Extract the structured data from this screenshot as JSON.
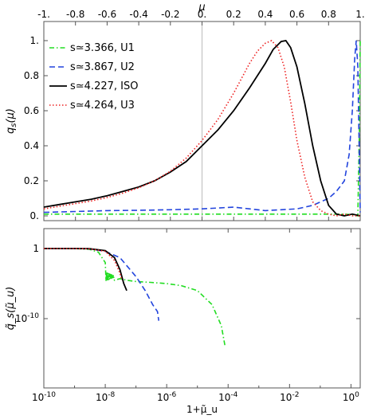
{
  "chart_data": [
    {
      "type": "line",
      "xlabel": "μ",
      "ylabel": "q_s(μ)",
      "xlim": [
        -1.0,
        1.0
      ],
      "ylim": [
        0.0,
        1.05
      ],
      "x_ticks": [
        -1.0,
        -0.8,
        -0.6,
        -0.4,
        -0.2,
        0.0,
        0.2,
        0.4,
        0.6,
        0.8,
        1.0
      ],
      "x_tick_labels": [
        "-1.",
        "-0.8",
        "-0.6",
        "-0.4",
        "-0.2",
        "0.",
        "0.2",
        "0.4",
        "0.6",
        "0.8",
        "1."
      ],
      "y_ticks": [
        0.0,
        0.2,
        0.4,
        0.6,
        0.8,
        1.0
      ],
      "y_tick_labels": [
        "0.",
        "0.2",
        "0.4",
        "0.6",
        "0.8",
        "1."
      ],
      "legend_position": "top-left",
      "series": [
        {
          "name": "s≃3.366, U1",
          "color": "#22dd22",
          "style": "dash-dot",
          "x": [
            -1.0,
            -0.5,
            0.0,
            0.5,
            0.9,
            0.97,
            0.985,
            0.995,
            1.0
          ],
          "y": [
            0.01,
            0.01,
            0.01,
            0.01,
            0.01,
            0.005,
            0.0,
            0.5,
            1.0
          ]
        },
        {
          "name": "s≃3.867, U2",
          "color": "#2244dd",
          "style": "dashed",
          "x": [
            -1.0,
            -0.8,
            -0.6,
            -0.4,
            -0.2,
            0.0,
            0.1,
            0.2,
            0.3,
            0.4,
            0.5,
            0.6,
            0.7,
            0.8,
            0.85,
            0.9,
            0.93,
            0.95,
            0.965,
            0.975,
            0.985,
            0.995,
            1.0
          ],
          "y": [
            0.02,
            0.025,
            0.03,
            0.032,
            0.035,
            0.04,
            0.045,
            0.05,
            0.04,
            0.03,
            0.035,
            0.04,
            0.06,
            0.1,
            0.14,
            0.2,
            0.35,
            0.6,
            0.9,
            1.0,
            0.85,
            0.3,
            0.02
          ]
        },
        {
          "name": "s≃4.227, ISO",
          "color": "#000000",
          "style": "solid",
          "x": [
            -1.0,
            -0.9,
            -0.8,
            -0.7,
            -0.6,
            -0.5,
            -0.4,
            -0.3,
            -0.2,
            -0.1,
            0.0,
            0.1,
            0.2,
            0.3,
            0.4,
            0.45,
            0.5,
            0.53,
            0.56,
            0.6,
            0.65,
            0.7,
            0.75,
            0.8,
            0.85,
            0.9,
            0.95,
            1.0
          ],
          "y": [
            0.05,
            0.065,
            0.08,
            0.095,
            0.115,
            0.14,
            0.165,
            0.2,
            0.25,
            0.31,
            0.4,
            0.49,
            0.6,
            0.73,
            0.87,
            0.95,
            0.995,
            1.0,
            0.96,
            0.85,
            0.64,
            0.4,
            0.2,
            0.06,
            0.01,
            0.0,
            0.01,
            0.0
          ]
        },
        {
          "name": "s≃4.264, U3",
          "color": "#ee2222",
          "style": "dotted",
          "x": [
            -1.0,
            -0.9,
            -0.8,
            -0.7,
            -0.6,
            -0.5,
            -0.4,
            -0.3,
            -0.2,
            -0.1,
            0.0,
            0.1,
            0.2,
            0.3,
            0.35,
            0.4,
            0.44,
            0.48,
            0.52,
            0.56,
            0.6,
            0.65,
            0.7,
            0.75,
            0.8,
            0.85,
            0.9,
            0.95,
            1.0
          ],
          "y": [
            0.04,
            0.055,
            0.07,
            0.085,
            0.105,
            0.13,
            0.16,
            0.2,
            0.255,
            0.33,
            0.43,
            0.55,
            0.7,
            0.87,
            0.94,
            0.985,
            1.0,
            0.96,
            0.85,
            0.65,
            0.43,
            0.22,
            0.08,
            0.03,
            0.01,
            0.0,
            0.01,
            0.0,
            0.0
          ]
        }
      ]
    },
    {
      "type": "line",
      "xlabel": "1+μ̃_u",
      "ylabel": "q̃_s(μ̃_u)",
      "x_scale": "log",
      "y_scale": "log",
      "xlim": [
        1e-10,
        2.0
      ],
      "ylim": [
        1e-16,
        30.0
      ],
      "x_ticks": [
        1e-10,
        1e-08,
        1e-06,
        0.0001,
        0.01,
        1
      ],
      "x_tick_labels": [
        "10^-10",
        "10^-8",
        "10^-6",
        "10^-4",
        "10^-2",
        "10^0"
      ],
      "y_ticks": [
        1,
        1e-10
      ],
      "y_tick_labels": [
        "1",
        "10^-10"
      ],
      "series": [
        {
          "name": "s≃3.366, U1",
          "color": "#22dd22",
          "style": "dash-dot",
          "x": [
            1e-10,
            1e-09,
            3e-09,
            6e-09,
            1e-08,
            1.5e-08,
            2e-08,
            3e-08,
            5e-08,
            1e-07,
            3e-07,
            1e-06,
            3e-06,
            1e-05,
            3e-05,
            6e-05,
            8e-05
          ],
          "y": [
            1,
            1,
            0.8,
            0.3,
            0.01,
            0.0001,
            3e-05,
            5e-05,
            3e-05,
            2e-05,
            1.5e-05,
            1e-05,
            5e-06,
            1e-06,
            1e-08,
            1e-11,
            1e-14
          ]
        },
        {
          "name": "s≃3.867, U2",
          "color": "#2244dd",
          "style": "dashed",
          "x": [
            1e-10,
            1e-09,
            3e-09,
            1e-08,
            3e-08,
            1e-07,
            2e-07,
            3.5e-07,
            5e-07,
            5.5e-07
          ],
          "y": [
            1,
            1,
            0.9,
            0.4,
            0.05,
            0.0001,
            1e-06,
            1e-08,
            1e-09,
            5e-11
          ]
        },
        {
          "name": "s≃4.227, ISO",
          "color": "#000000",
          "style": "solid",
          "x": [
            1e-10,
            1e-09,
            3e-09,
            1e-08,
            2e-08,
            3e-08,
            4e-08,
            5e-08
          ],
          "y": [
            1,
            1,
            0.95,
            0.5,
            0.05,
            0.001,
            1e-05,
            1e-06
          ]
        },
        {
          "name": "s≃4.264, U3",
          "color": "#ee2222",
          "style": "dotted",
          "x": [
            1e-10,
            1e-09,
            3e-09,
            1e-08,
            2e-08,
            3e-08,
            3.5e-08
          ],
          "y": [
            1,
            1,
            0.9,
            0.4,
            0.02,
            0.0003,
            3e-05
          ]
        }
      ]
    }
  ]
}
